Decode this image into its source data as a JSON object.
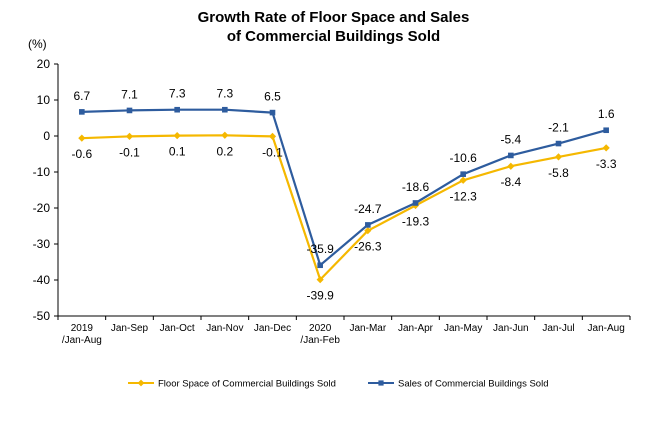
{
  "chart_data": {
    "type": "line",
    "title_line1": "Growth Rate of Floor Space and Sales",
    "title_line2": "of Commercial Buildings Sold",
    "unit": "(%)",
    "categories": [
      [
        "2019",
        "/Jan-Aug"
      ],
      [
        "Jan-Sep"
      ],
      [
        "Jan-Oct"
      ],
      [
        "Jan-Nov"
      ],
      [
        "Jan-Dec"
      ],
      [
        "2020",
        "/Jan-Feb"
      ],
      [
        "Jan-Mar"
      ],
      [
        "Jan-Apr"
      ],
      [
        "Jan-May"
      ],
      [
        "Jan-Jun"
      ],
      [
        "Jan-Jul"
      ],
      [
        "Jan-Aug"
      ]
    ],
    "ylim": [
      -50,
      20
    ],
    "yticks": [
      20,
      10,
      0,
      -10,
      -20,
      -30,
      -40,
      -50
    ],
    "grid": false,
    "legend_position": "bottom",
    "series": [
      {
        "name": "Floor Space of Commercial Buildings Sold",
        "color": "#F5B800",
        "marker": "diamond",
        "values": [
          -0.6,
          -0.1,
          0.1,
          0.2,
          -0.1,
          -39.9,
          -26.3,
          -19.3,
          -12.3,
          -8.4,
          -5.8,
          -3.3
        ],
        "labels": [
          "-0.6",
          "-0.1",
          "0.1",
          "0.2",
          "-0.1",
          "-39.9",
          "-26.3",
          "-19.3",
          "-12.3",
          "-8.4",
          "-5.8",
          "-3.3"
        ],
        "label_side": "below"
      },
      {
        "name": "Sales of Commercial Buildings Sold",
        "color": "#2E5C9E",
        "marker": "square",
        "values": [
          6.7,
          7.1,
          7.3,
          7.3,
          6.5,
          -35.9,
          -24.7,
          -18.6,
          -10.6,
          -5.4,
          -2.1,
          1.6
        ],
        "labels": [
          "6.7",
          "7.1",
          "7.3",
          "7.3",
          "6.5",
          "-35.9",
          "-24.7",
          "-18.6",
          "-10.6",
          "-5.4",
          "-2.1",
          "1.6"
        ],
        "label_side": "above"
      }
    ]
  }
}
